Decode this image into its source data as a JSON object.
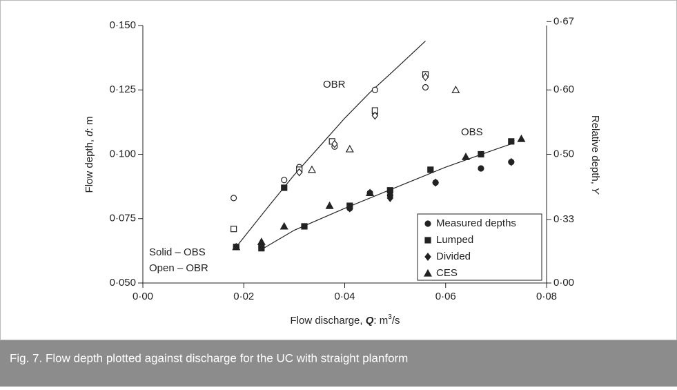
{
  "chart_data": {
    "type": "scatter",
    "caption": "Fig. 7. Flow depth plotted against discharge for the UC with straight planform",
    "xlabel": [
      "Flow discharge, ",
      "Q",
      ": m",
      "3",
      "/s"
    ],
    "ylabel": [
      "Flow depth, ",
      "d",
      ": m"
    ],
    "y2label": [
      "Relative depth, ",
      "Y"
    ],
    "xlim": [
      0,
      0.08
    ],
    "ylim": [
      0.05,
      0.15
    ],
    "xticks": [
      {
        "value": 0,
        "label": "0·00"
      },
      {
        "value": 0.02,
        "label": "0·02"
      },
      {
        "value": 0.04,
        "label": "0·04"
      },
      {
        "value": 0.06,
        "label": "0·06"
      },
      {
        "value": 0.08,
        "label": "0·08"
      }
    ],
    "yticks": [
      {
        "value": 0.05,
        "label": "0·050"
      },
      {
        "value": 0.075,
        "label": "0·075"
      },
      {
        "value": 0.1,
        "label": "0·100"
      },
      {
        "value": 0.125,
        "label": "0·125"
      },
      {
        "value": 0.15,
        "label": "0·150"
      }
    ],
    "y2ticks": [
      {
        "value": 0,
        "label": "0·00"
      },
      {
        "value": 0.33,
        "label": "0·33"
      },
      {
        "value": 0.5,
        "label": "0·50"
      },
      {
        "value": 0.6,
        "label": "0·60"
      },
      {
        "value": 0.67,
        "label": "0·67"
      }
    ],
    "annotations": [
      "Solid – OBS",
      "Open – OBR"
    ],
    "color": "#222222",
    "series": [
      {
        "name": "Measured depths",
        "marker": "circle",
        "OBS": {
          "x": [
            0.0185,
            0.0235,
            0.032,
            0.041,
            0.045,
            0.049,
            0.058,
            0.067,
            0.073
          ],
          "values": [
            0.064,
            0.064,
            0.072,
            0.079,
            0.085,
            0.084,
            0.089,
            0.0945,
            0.097
          ]
        },
        "OBR": {
          "x": [
            0.018,
            0.028,
            0.031,
            0.038,
            0.046,
            0.046,
            0.056
          ],
          "values": [
            0.083,
            0.09,
            0.095,
            0.103,
            0.125,
            0.116,
            0.126
          ]
        }
      },
      {
        "name": "Lumped",
        "marker": "square",
        "OBS": {
          "x": [
            0.0185,
            0.0235,
            0.028,
            0.032,
            0.041,
            0.049,
            0.057,
            0.067,
            0.073
          ],
          "values": [
            0.064,
            0.0635,
            0.087,
            0.072,
            0.08,
            0.086,
            0.094,
            0.1,
            0.105
          ]
        },
        "OBR": {
          "x": [
            0.018,
            0.031,
            0.0375,
            0.046,
            0.056
          ],
          "values": [
            0.071,
            0.094,
            0.105,
            0.117,
            0.131
          ]
        }
      },
      {
        "name": "Divided",
        "marker": "diamond",
        "OBS": {
          "x": [
            0.0235,
            0.041,
            0.049,
            0.058,
            0.073
          ],
          "values": [
            0.065,
            0.079,
            0.083,
            0.089,
            0.097
          ]
        },
        "OBR": {
          "x": [
            0.031,
            0.038,
            0.046,
            0.056
          ],
          "values": [
            0.093,
            0.104,
            0.115,
            0.13
          ]
        }
      },
      {
        "name": "CES",
        "marker": "triangle",
        "OBS": {
          "x": [
            0.0185,
            0.0235,
            0.028,
            0.037,
            0.045,
            0.064,
            0.075
          ],
          "values": [
            0.064,
            0.066,
            0.072,
            0.08,
            0.085,
            0.099,
            0.106
          ]
        },
        "OBR": {
          "x": [
            0.0335,
            0.041,
            0.062
          ],
          "values": [
            0.094,
            0.102,
            0.125
          ]
        }
      }
    ],
    "fits": [
      {
        "name": "OBR",
        "x": [
          0.0185,
          0.025,
          0.03,
          0.035,
          0.04,
          0.045,
          0.05,
          0.056
        ],
        "values": [
          0.064,
          0.08,
          0.092,
          0.103,
          0.114,
          0.124,
          0.133,
          0.144
        ]
      },
      {
        "name": "OBS",
        "x": [
          0.0235,
          0.03,
          0.04,
          0.05,
          0.06,
          0.07,
          0.073
        ],
        "values": [
          0.063,
          0.0705,
          0.079,
          0.087,
          0.095,
          0.102,
          0.104
        ]
      }
    ]
  }
}
